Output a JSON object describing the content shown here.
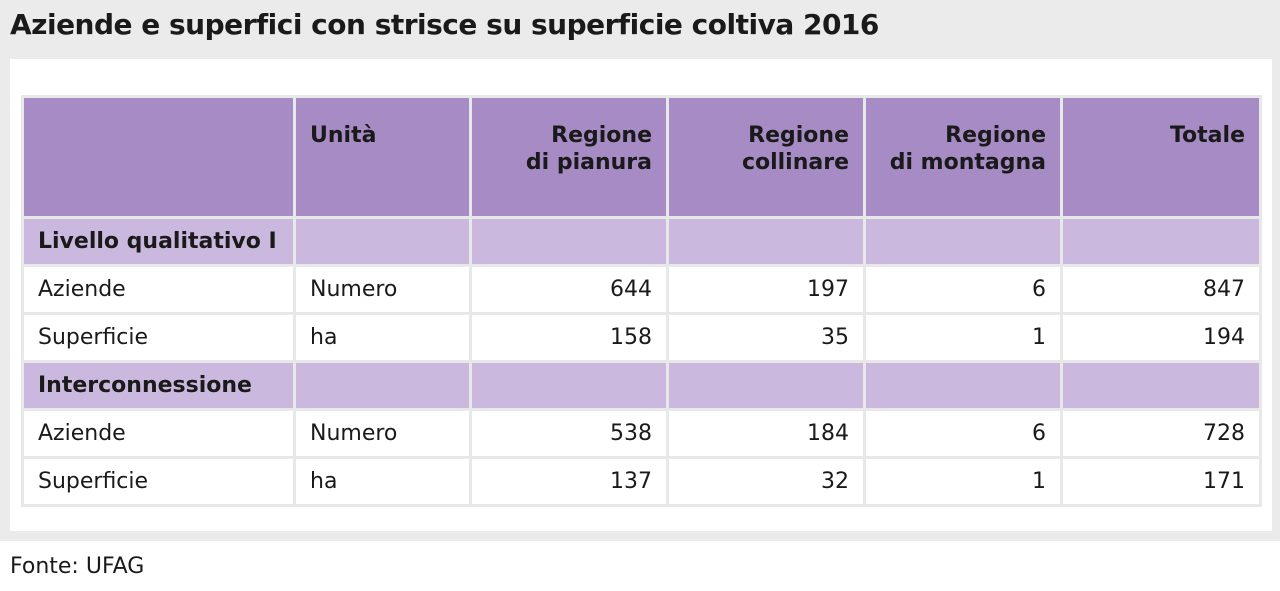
{
  "title": "Aziende e superfici con strisce su superficie coltiva 2016",
  "table": {
    "headers": {
      "col0": "",
      "unit": "Unità",
      "plain_l1": "Regione",
      "plain_l2": "di pianura",
      "hill_l1": "Regione",
      "hill_l2": "collinare",
      "mountain_l1": "Regione",
      "mountain_l2": "di montagna",
      "total": "Totale"
    },
    "sections": [
      {
        "label": "Livello qualitativo I",
        "rows": [
          {
            "label": "Aziende",
            "unit": "Numero",
            "plain": "644",
            "hill": "197",
            "mountain": "6",
            "total": "847"
          },
          {
            "label": "Superficie",
            "unit": "ha",
            "plain": "158",
            "hill": "35",
            "mountain": "1",
            "total": "194"
          }
        ]
      },
      {
        "label": "Interconnessione",
        "rows": [
          {
            "label": "Aziende",
            "unit": "Numero",
            "plain": "538",
            "hill": "184",
            "mountain": "6",
            "total": "728"
          },
          {
            "label": "Superficie",
            "unit": "ha",
            "plain": "137",
            "hill": "32",
            "mountain": "1",
            "total": "171"
          }
        ]
      }
    ]
  },
  "source": "Fonte: UFAG",
  "colors": {
    "header_bg": "#a68bc4",
    "section_bg": "#cbb8de",
    "frame_bg": "#ebebeb"
  }
}
